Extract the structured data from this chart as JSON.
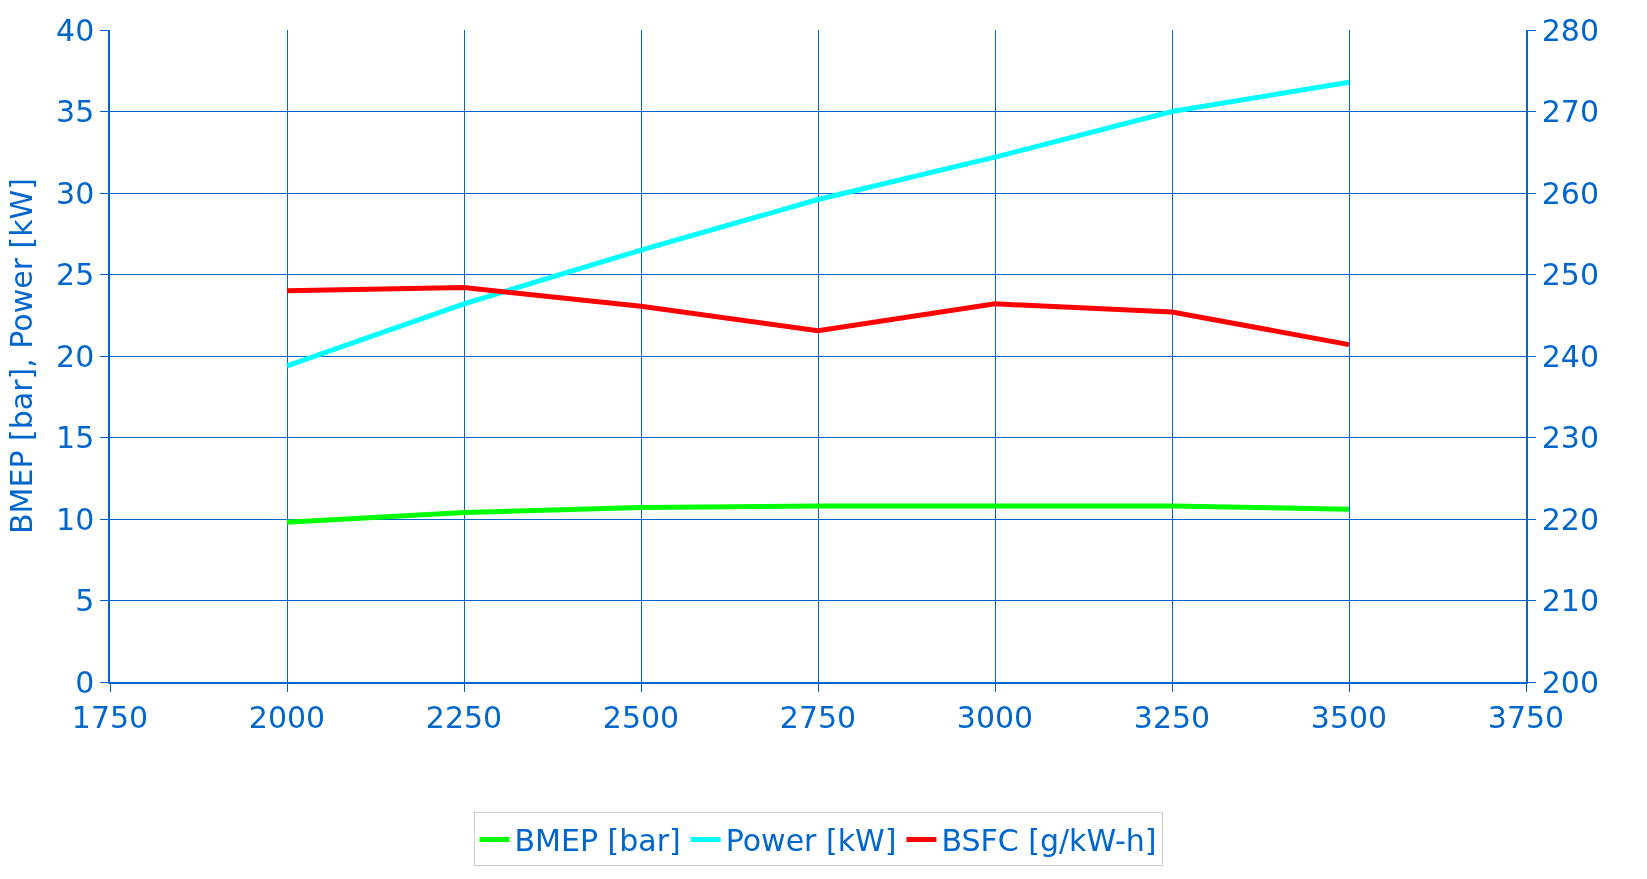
{
  "chart_data": {
    "type": "line",
    "ylabel": "BMEP [bar], Power [kW]",
    "x": [
      2000,
      2250,
      2500,
      2750,
      3000,
      3250,
      3500
    ],
    "series": [
      {
        "name": "BMEP [bar]",
        "color": "#00ff00",
        "values": [
          9.8,
          10.4,
          10.7,
          10.8,
          10.8,
          10.8,
          10.6
        ]
      },
      {
        "name": "Power [kW]",
        "color": "#00ffff",
        "values": [
          19.4,
          23.2,
          26.5,
          29.6,
          32.2,
          35.0,
          36.8
        ]
      },
      {
        "name": "BSFC [g/kW-h]",
        "color": "#ff0000",
        "axis": "y2",
        "values": [
          248.0,
          248.4,
          246.1,
          243.1,
          246.4,
          245.4,
          241.4
        ]
      }
    ],
    "xlim": [
      1750,
      3750
    ],
    "xticks": [
      1750,
      2000,
      2250,
      2500,
      2750,
      3000,
      3250,
      3500,
      3750
    ],
    "ylim": [
      0,
      40
    ],
    "yticks": [
      0,
      5,
      10,
      15,
      20,
      25,
      30,
      35,
      40
    ],
    "y2lim": [
      200,
      280
    ],
    "y2ticks": [
      200,
      210,
      220,
      230,
      240,
      250,
      260,
      270,
      280
    ],
    "grid": true,
    "legend": "bottom",
    "marker": "none",
    "line_style": "solid"
  }
}
